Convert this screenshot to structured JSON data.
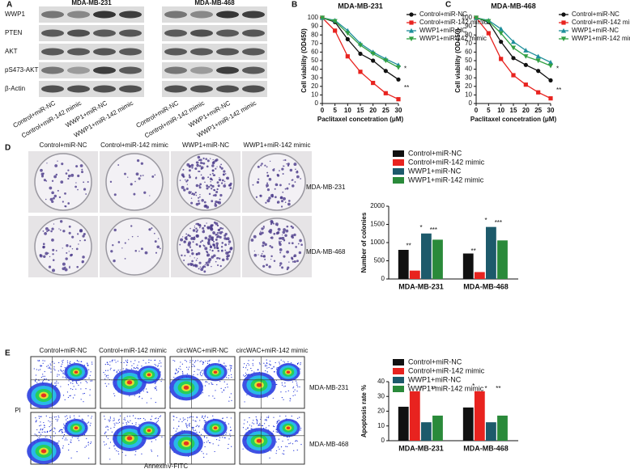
{
  "panel_a": {
    "label": "A",
    "cell_lines": [
      "MDA-MB-231",
      "MDA-MB-468"
    ],
    "proteins": [
      "WWP1",
      "PTEN",
      "AKT",
      "pS473-AKT",
      "β-Actin"
    ],
    "lanes": [
      "Control+miR-NC",
      "Control+miR-142 mimic",
      "WWP1+miR-NC",
      "WWP1+miR-142 mimic"
    ]
  },
  "panel_d": {
    "label": "D",
    "conditions": [
      "Control+miR-NC",
      "Control+miR-142 mimic",
      "WWP1+miR-NC",
      "WWP1+miR-142 mimic"
    ],
    "cell_lines": [
      "MDA-MB-231",
      "MDA-MB-468"
    ]
  },
  "panel_e": {
    "label": "E",
    "conditions": [
      "Control+miR-NC",
      "Control+miR-142 mimic",
      "circWAC+miR-NC",
      "circWAC+miR-142 mimic"
    ],
    "cell_lines": [
      "MDA-MB-231",
      "MDA-MB-468"
    ],
    "y_label": "PI",
    "x_label": "AnnexinV-FITC"
  },
  "chart_data": [
    {
      "type": "line",
      "panel_label": "B",
      "title": "MDA-MB-231",
      "x_label": "Paclitaxel concetration (μM)",
      "y_label": "Cell viability (OD450)",
      "x": [
        0,
        5,
        10,
        15,
        20,
        25,
        30
      ],
      "xlim": [
        0,
        30
      ],
      "xticks": [
        0,
        5,
        10,
        15,
        20,
        25,
        30
      ],
      "ylim": [
        0,
        100
      ],
      "yticks": [
        0,
        10,
        20,
        30,
        40,
        50,
        60,
        70,
        80,
        90,
        100
      ],
      "series": [
        {
          "name": "Control+miR-NC",
          "color": "#111111",
          "marker": "circle",
          "values": [
            100,
            95,
            75,
            58,
            50,
            38,
            28
          ]
        },
        {
          "name": "Control+miR-142 mimic",
          "color": "#e8231f",
          "marker": "square",
          "values": [
            100,
            85,
            55,
            37,
            24,
            12,
            5
          ]
        },
        {
          "name": "WWP1+miR-NC",
          "color": "#1f8f9a",
          "marker": "triangle",
          "values": [
            100,
            97,
            85,
            70,
            60,
            52,
            45
          ]
        },
        {
          "name": "WWP1+miR-142 mimic",
          "color": "#33a043",
          "marker": "triangle-down",
          "values": [
            100,
            96,
            82,
            68,
            58,
            50,
            42
          ]
        }
      ],
      "annotations": [
        "*",
        "**"
      ]
    },
    {
      "type": "line",
      "panel_label": "C",
      "title": "MDA-MB-468",
      "x_label": "Paclitaxel concetration (μM)",
      "y_label": "Cell viability (OD450)",
      "x": [
        0,
        5,
        10,
        15,
        20,
        25,
        30
      ],
      "xlim": [
        0,
        30
      ],
      "xticks": [
        0,
        5,
        10,
        15,
        20,
        25,
        30
      ],
      "ylim": [
        0,
        100
      ],
      "yticks": [
        0,
        10,
        20,
        30,
        40,
        50,
        60,
        70,
        80,
        90,
        100
      ],
      "series": [
        {
          "name": "Control+miR-NC",
          "color": "#111111",
          "marker": "circle",
          "values": [
            100,
            95,
            72,
            53,
            45,
            38,
            27
          ]
        },
        {
          "name": "Control+miR-142 mimic",
          "color": "#e8231f",
          "marker": "square",
          "values": [
            100,
            82,
            52,
            33,
            22,
            13,
            6
          ]
        },
        {
          "name": "WWP1+miR-NC",
          "color": "#1f8f9a",
          "marker": "triangle",
          "values": [
            100,
            97,
            87,
            72,
            62,
            55,
            48
          ]
        },
        {
          "name": "WWP1+miR-142 mimic",
          "color": "#33a043",
          "marker": "triangle-down",
          "values": [
            100,
            96,
            82,
            65,
            55,
            50,
            44
          ]
        }
      ],
      "annotations": [
        "*",
        "**"
      ]
    },
    {
      "type": "bar",
      "y_label": "Number of colonies",
      "categories": [
        "MDA-MB-231",
        "MDA-MB-468"
      ],
      "ylim": [
        0,
        2000
      ],
      "yticks": [
        0,
        500,
        1000,
        1500,
        2000
      ],
      "series": [
        {
          "name": "Control+miR-NC",
          "color": "#111111",
          "values": [
            800,
            700
          ]
        },
        {
          "name": "Control+miR-142 mimic",
          "color": "#e8231f",
          "values": [
            230,
            190
          ]
        },
        {
          "name": "WWP1+miR-NC",
          "color": "#1d5a6b",
          "values": [
            1250,
            1430
          ]
        },
        {
          "name": "WWP1+miR-142 mimic",
          "color": "#2a8a3a",
          "values": [
            1080,
            1060
          ]
        }
      ],
      "annotations": [
        "**",
        "*",
        "***",
        "**",
        "*",
        "***"
      ]
    },
    {
      "type": "bar",
      "y_label": "Apoptosis rate %",
      "categories": [
        "MDA-MB-231",
        "MDA-MB-468"
      ],
      "ylim": [
        0,
        40
      ],
      "yticks": [
        0,
        10,
        20,
        30,
        40
      ],
      "series": [
        {
          "name": "Control+miR-NC",
          "color": "#111111",
          "values": [
            23,
            22.5
          ]
        },
        {
          "name": "Control+miR-142 mimic",
          "color": "#e8231f",
          "values": [
            33.5,
            33.5
          ]
        },
        {
          "name": "WWP1+miR-NC",
          "color": "#1d5a6b",
          "values": [
            12.5,
            12.5
          ]
        },
        {
          "name": "WWP1+miR-142 mimic",
          "color": "#2a8a3a",
          "values": [
            17,
            17
          ]
        }
      ],
      "annotations": [
        "*",
        "*",
        "**",
        "*",
        "*",
        "**"
      ]
    }
  ]
}
